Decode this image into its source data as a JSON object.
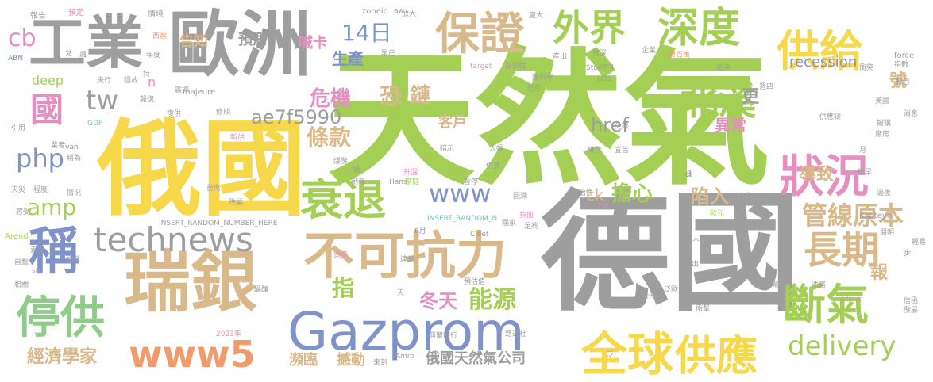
{
  "palette": {
    "background": "#ffffff",
    "gray": "#9e9e9e",
    "lime": "#a3cf55",
    "blue": "#7f92c9",
    "yellow": "#f7d84a",
    "tan": "#d9b98a",
    "green": "#8fcc8a",
    "pink": "#e58fc0",
    "orange": "#f39a6b",
    "teal": "#6fc7b7",
    "lightgray": "#cfcfcf"
  },
  "words": [
    "天然氣",
    "德國",
    "俄國",
    "歐洲",
    "工業",
    "瑞銀",
    "Gazprom",
    "不可抗力",
    "保證",
    "深度",
    "外界",
    "供給",
    "北溪",
    "狀況",
    "衰退",
    "technews",
    "稱",
    "停供",
    "長期",
    "斷氣",
    "全球",
    "供應",
    "www5",
    "www",
    "14日",
    "delivery",
    "國",
    "tw",
    "php",
    "amp",
    "cb",
    "危機",
    "條款",
    "恐",
    "鏈",
    "ae7f5990",
    "href",
    "客戶",
    "更",
    "異常",
    "管線原本",
    "導致",
    "擔心",
    "陷入",
    "ck",
    "指",
    "冬天",
    "能源",
    "經濟學家",
    "瀕臨",
    "撼動",
    "俄國天然氣公司",
    "報",
    "號",
    "生產",
    "預測",
    "喊卡",
    "告知",
    "deep",
    "recession",
    "n",
    "a",
    "INSERT_RANDOM_NUMBER_HERE",
    "INSERT_RANDOM_N",
    "Cleef",
    "Amro",
    "Kapteyn",
    "Arend",
    "Stoxx",
    "UBS",
    "GDP",
    "ABN",
    "force",
    "majeure",
    "zoneid",
    "target",
    "img",
    "src",
    "van",
    "Hans",
    "_blank",
    "aw",
    "2023年",
    "7月",
    "6月",
    "報告",
    "預定",
    "情境",
    "放大",
    "龐大",
    "西歐",
    "年度",
    "央行",
    "穩故",
    "震撼",
    "報復",
    "復供",
    "修期",
    "斷供",
    "暗示",
    "爆發",
    "升溫",
    "家庭",
    "負面",
    "足夠",
    "國家",
    "公佈",
    "產出",
    "數百萬",
    "結束",
    "週四",
    "消息",
    "閱明",
    "信函",
    "發展",
    "警告",
    "指數",
    "美元",
    "輸送",
    "透露",
    "法律",
    "歐元",
    "人士",
    "想出",
    "泛歐",
    "衝擊",
    "預估值",
    "荷蘭銀行",
    "路透社",
    "首席",
    "天災",
    "程度",
    "稱為",
    "業者",
    "情況",
    "責任",
    "目擊",
    "盈餘",
    "相關",
    "感受",
    "醞釀",
    "資產",
    "連鎖",
    "政治性",
    "回溯",
    "暫停",
    "供貨",
    "技術性",
    "隨利率",
    "貶至",
    "企業",
    "供應鏈",
    "維修",
    "免除",
    "一致",
    "制裁",
    "跌幅",
    "大幅",
    "過後",
    "輕易",
    "步",
    "宣告",
    "搶購",
    "廠房",
    "月",
    "兌",
    "飆",
    "持",
    "資深",
    "衝突",
    "美國",
    "稍早",
    "引用",
    "早已",
    "來到",
    "泛",
    "天"
  ]
}
